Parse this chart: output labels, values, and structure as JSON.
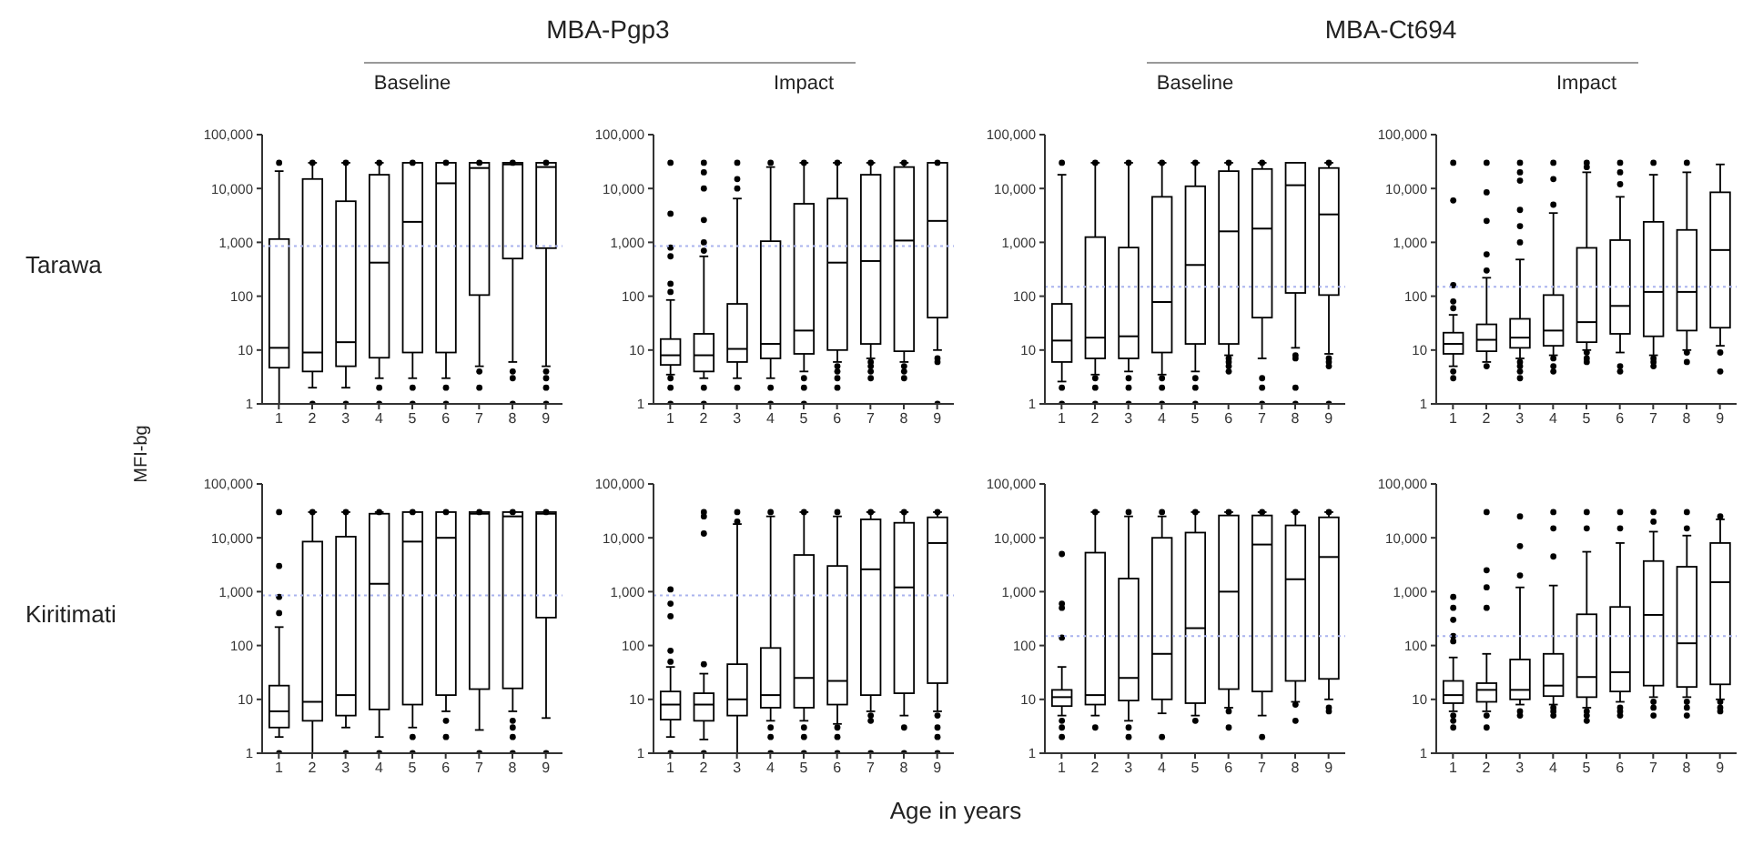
{
  "chart_data": [
    {
      "type": "box",
      "title": "Baseline",
      "ylabel": "MFI-bg",
      "annotations": [
        "MBA-Pgp3",
        "Tarawa"
      ],
      "categories": [
        "1",
        "2",
        "3",
        "4",
        "5",
        "6",
        "7",
        "8",
        "9"
      ],
      "color": "#000000",
      "log": true,
      "ylim": [
        1,
        100000
      ],
      "yticks": [
        1,
        10,
        100,
        {
          "value": 1000,
          "label": "1,000"
        },
        {
          "value": 10000,
          "label": "10,000"
        },
        {
          "value": 100000,
          "label": "100,000"
        }
      ],
      "ref_lines": [
        {
          "axis": "y",
          "value": 850,
          "color": "#a9b3ee",
          "line_style": "dotted"
        }
      ],
      "boxes": [
        {
          "low": 1,
          "q1": 4.7,
          "median": 11,
          "q3": 1150,
          "high": 21000,
          "outliers": [
            30000
          ]
        },
        {
          "low": 2,
          "q1": 4,
          "median": 9,
          "q3": 15000,
          "high": 30000,
          "outliers": [
            1,
            30000
          ]
        },
        {
          "low": 2,
          "q1": 5,
          "median": 14,
          "q3": 5800,
          "high": 30000,
          "outliers": [
            1,
            30000
          ]
        },
        {
          "low": 3,
          "q1": 7.2,
          "median": 420,
          "q3": 18000,
          "high": 30000,
          "outliers": [
            2,
            1,
            30000
          ]
        },
        {
          "low": 3,
          "q1": 9,
          "median": 2400,
          "q3": 30000,
          "high": 30000,
          "outliers": [
            2,
            1,
            30000
          ]
        },
        {
          "low": 3,
          "q1": 9,
          "median": 12500,
          "q3": 30000,
          "high": 30000,
          "outliers": [
            2,
            1,
            30000
          ]
        },
        {
          "low": 5,
          "q1": 105,
          "median": 24000,
          "q3": 30000,
          "high": 30000,
          "outliers": [
            4,
            2,
            30000
          ]
        },
        {
          "low": 6,
          "q1": 500,
          "median": 28000,
          "q3": 30000,
          "high": 30000,
          "outliers": [
            4,
            3,
            1,
            30000
          ]
        },
        {
          "low": 5,
          "q1": 780,
          "median": 25000,
          "q3": 30000,
          "high": 30000,
          "outliers": [
            4,
            3,
            2,
            1,
            30000
          ]
        }
      ]
    },
    {
      "type": "box",
      "title": "Impact",
      "categories": [
        "1",
        "2",
        "3",
        "4",
        "5",
        "6",
        "7",
        "8",
        "9"
      ],
      "color": "#000000",
      "log": true,
      "ylim": [
        1,
        100000
      ],
      "yticks": [
        1,
        10,
        100,
        {
          "value": 1000,
          "label": "1,000"
        },
        {
          "value": 10000,
          "label": "10,000"
        },
        {
          "value": 100000,
          "label": "100,000"
        }
      ],
      "ref_lines": [
        {
          "axis": "y",
          "value": 850,
          "color": "#a9b3ee",
          "line_style": "dotted"
        }
      ],
      "boxes": [
        {
          "low": 3.5,
          "q1": 5.3,
          "median": 8,
          "q3": 16,
          "high": 85,
          "outliers": [
            3,
            2,
            1,
            120,
            170,
            550,
            800,
            3400,
            30000
          ]
        },
        {
          "low": 3,
          "q1": 4,
          "median": 8,
          "q3": 20,
          "high": 550,
          "outliers": [
            2,
            1,
            700,
            1000,
            2600,
            10000,
            20000,
            30000
          ]
        },
        {
          "low": 3,
          "q1": 6,
          "median": 10.5,
          "q3": 72,
          "high": 6500,
          "outliers": [
            2,
            10000,
            15000,
            30000
          ]
        },
        {
          "low": 3,
          "q1": 7,
          "median": 13,
          "q3": 1050,
          "high": 25000,
          "outliers": [
            2,
            1,
            30000
          ]
        },
        {
          "low": 4,
          "q1": 8.5,
          "median": 23,
          "q3": 5200,
          "high": 30000,
          "outliers": [
            3,
            2,
            1,
            30000
          ]
        },
        {
          "low": 6,
          "q1": 10,
          "median": 420,
          "q3": 6500,
          "high": 30000,
          "outliers": [
            5,
            4,
            3,
            2,
            30000
          ]
        },
        {
          "low": 7,
          "q1": 13,
          "median": 450,
          "q3": 18000,
          "high": 30000,
          "outliers": [
            6,
            5,
            4,
            3,
            30000
          ]
        },
        {
          "low": 6,
          "q1": 9.5,
          "median": 1080,
          "q3": 25000,
          "high": 30000,
          "outliers": [
            5,
            4,
            3,
            30000
          ]
        },
        {
          "low": 10,
          "q1": 40,
          "median": 2500,
          "q3": 30000,
          "high": 30000,
          "outliers": [
            7,
            6,
            1,
            30000
          ]
        }
      ]
    },
    {
      "type": "box",
      "title": "Baseline",
      "annotations": [
        "MBA-Ct694"
      ],
      "categories": [
        "1",
        "2",
        "3",
        "4",
        "5",
        "6",
        "7",
        "8",
        "9"
      ],
      "color": "#000000",
      "log": true,
      "ylim": [
        1,
        100000
      ],
      "yticks": [
        1,
        10,
        100,
        {
          "value": 1000,
          "label": "1,000"
        },
        {
          "value": 10000,
          "label": "10,000"
        },
        {
          "value": 100000,
          "label": "100,000"
        }
      ],
      "ref_lines": [
        {
          "axis": "y",
          "value": 150,
          "color": "#a9b3ee",
          "line_style": "dotted"
        }
      ],
      "boxes": [
        {
          "low": 2.6,
          "q1": 6,
          "median": 15,
          "q3": 72,
          "high": 18000,
          "outliers": [
            2,
            1,
            30000
          ]
        },
        {
          "low": 3.5,
          "q1": 7,
          "median": 17,
          "q3": 1250,
          "high": 30000,
          "outliers": [
            3,
            2,
            1,
            30000
          ]
        },
        {
          "low": 4,
          "q1": 7,
          "median": 18,
          "q3": 800,
          "high": 30000,
          "outliers": [
            3,
            2,
            1,
            30000
          ]
        },
        {
          "low": 3.5,
          "q1": 9,
          "median": 78,
          "q3": 7000,
          "high": 30000,
          "outliers": [
            3,
            2,
            1,
            30000
          ]
        },
        {
          "low": 4,
          "q1": 13,
          "median": 380,
          "q3": 11000,
          "high": 30000,
          "outliers": [
            3,
            2,
            1,
            30000
          ]
        },
        {
          "low": 8,
          "q1": 13,
          "median": 1600,
          "q3": 21000,
          "high": 30000,
          "outliers": [
            7,
            6,
            5,
            4,
            30000
          ]
        },
        {
          "low": 7,
          "q1": 40,
          "median": 1800,
          "q3": 23000,
          "high": 30000,
          "outliers": [
            3,
            2,
            1,
            30000
          ]
        },
        {
          "low": 11,
          "q1": 115,
          "median": 11500,
          "q3": 30000,
          "high": 30000,
          "outliers": [
            8,
            7,
            2,
            1
          ]
        },
        {
          "low": 8.5,
          "q1": 105,
          "median": 3300,
          "q3": 24000,
          "high": 30000,
          "outliers": [
            7,
            6,
            5,
            1,
            30000
          ]
        }
      ]
    },
    {
      "type": "box",
      "title": "Impact",
      "categories": [
        "1",
        "2",
        "3",
        "4",
        "5",
        "6",
        "7",
        "8",
        "9"
      ],
      "color": "#000000",
      "log": true,
      "ylim": [
        1,
        100000
      ],
      "yticks": [
        1,
        10,
        100,
        {
          "value": 1000,
          "label": "1,000"
        },
        {
          "value": 10000,
          "label": "10,000"
        },
        {
          "value": 100000,
          "label": "100,000"
        }
      ],
      "ref_lines": [
        {
          "axis": "y",
          "value": 150,
          "color": "#a9b3ee",
          "line_style": "dotted"
        }
      ],
      "boxes": [
        {
          "low": 5,
          "q1": 8.5,
          "median": 13,
          "q3": 21,
          "high": 45,
          "outliers": [
            4,
            3,
            60,
            80,
            160,
            6000,
            30000
          ]
        },
        {
          "low": 6,
          "q1": 9.5,
          "median": 15.5,
          "q3": 30,
          "high": 220,
          "outliers": [
            5,
            300,
            600,
            2500,
            8500,
            30000
          ]
        },
        {
          "low": 7,
          "q1": 11,
          "median": 17,
          "q3": 38,
          "high": 480,
          "outliers": [
            6,
            5,
            4,
            3,
            1000,
            2000,
            4000,
            14000,
            20000,
            30000
          ]
        },
        {
          "low": 8,
          "q1": 12,
          "median": 23,
          "q3": 105,
          "high": 3500,
          "outliers": [
            7,
            5,
            4,
            5000,
            15000,
            30000
          ]
        },
        {
          "low": 10,
          "q1": 14,
          "median": 33,
          "q3": 790,
          "high": 20000,
          "outliers": [
            9,
            7,
            6,
            25000,
            30000
          ]
        },
        {
          "low": 9,
          "q1": 20,
          "median": 66,
          "q3": 1100,
          "high": 7000,
          "outliers": [
            5,
            4,
            12000,
            20000,
            30000
          ]
        },
        {
          "low": 8,
          "q1": 18,
          "median": 120,
          "q3": 2400,
          "high": 18000,
          "outliers": [
            7,
            6,
            5,
            30000
          ]
        },
        {
          "low": 10,
          "q1": 23,
          "median": 120,
          "q3": 1700,
          "high": 20000,
          "outliers": [
            9,
            6,
            30000
          ]
        },
        {
          "low": 12,
          "q1": 26,
          "median": 720,
          "q3": 8500,
          "high": 28000,
          "outliers": [
            9,
            4
          ]
        }
      ]
    },
    {
      "type": "box",
      "annotations": [
        "Kiritimati"
      ],
      "categories": [
        "1",
        "2",
        "3",
        "4",
        "5",
        "6",
        "7",
        "8",
        "9"
      ],
      "color": "#000000",
      "log": true,
      "ylim": [
        1,
        100000
      ],
      "yticks": [
        1,
        10,
        100,
        {
          "value": 1000,
          "label": "1,000"
        },
        {
          "value": 10000,
          "label": "10,000"
        },
        {
          "value": 100000,
          "label": "100,000"
        }
      ],
      "ref_lines": [
        {
          "axis": "y",
          "value": 850,
          "color": "#a9b3ee",
          "line_style": "dotted"
        }
      ],
      "boxes": [
        {
          "low": 2,
          "q1": 3,
          "median": 6,
          "q3": 18,
          "high": 220,
          "outliers": [
            1,
            400,
            800,
            3000,
            30000
          ]
        },
        {
          "low": 1,
          "q1": 4,
          "median": 9,
          "q3": 8500,
          "high": 30000,
          "outliers": [
            30000
          ]
        },
        {
          "low": 3,
          "q1": 5,
          "median": 12,
          "q3": 10500,
          "high": 30000,
          "outliers": [
            1,
            30000
          ]
        },
        {
          "low": 2,
          "q1": 6.5,
          "median": 1400,
          "q3": 28000,
          "high": 30000,
          "outliers": [
            1,
            30000
          ]
        },
        {
          "low": 3,
          "q1": 8,
          "median": 8500,
          "q3": 30000,
          "high": 30000,
          "outliers": [
            2,
            1,
            30000
          ]
        },
        {
          "low": 6,
          "q1": 12,
          "median": 10000,
          "q3": 30000,
          "high": 30000,
          "outliers": [
            4,
            2,
            30000
          ]
        },
        {
          "low": 2.7,
          "q1": 15.5,
          "median": 28000,
          "q3": 30000,
          "high": 30000,
          "outliers": [
            1,
            30000
          ]
        },
        {
          "low": 6,
          "q1": 16,
          "median": 25000,
          "q3": 30000,
          "high": 30000,
          "outliers": [
            4,
            3,
            2,
            1,
            30000
          ]
        },
        {
          "low": 4.5,
          "q1": 330,
          "median": 28000,
          "q3": 30000,
          "high": 30000,
          "outliers": [
            1,
            30000
          ]
        }
      ]
    },
    {
      "type": "box",
      "xlabel": "Age in years",
      "categories": [
        "1",
        "2",
        "3",
        "4",
        "5",
        "6",
        "7",
        "8",
        "9"
      ],
      "color": "#000000",
      "log": true,
      "ylim": [
        1,
        100000
      ],
      "yticks": [
        1,
        10,
        100,
        {
          "value": 1000,
          "label": "1,000"
        },
        {
          "value": 10000,
          "label": "10,000"
        },
        {
          "value": 100000,
          "label": "100,000"
        }
      ],
      "ref_lines": [
        {
          "axis": "y",
          "value": 850,
          "color": "#a9b3ee",
          "line_style": "dotted"
        }
      ],
      "boxes": [
        {
          "low": 2,
          "q1": 4.2,
          "median": 8,
          "q3": 14,
          "high": 40,
          "outliers": [
            1,
            50,
            80,
            350,
            600,
            1100
          ]
        },
        {
          "low": 1.8,
          "q1": 4,
          "median": 8,
          "q3": 13,
          "high": 30,
          "outliers": [
            1,
            45,
            12000,
            25000,
            30000
          ]
        },
        {
          "low": 1,
          "q1": 5,
          "median": 10,
          "q3": 45,
          "high": 18000,
          "outliers": [
            20000,
            30000
          ]
        },
        {
          "low": 4,
          "q1": 7,
          "median": 12,
          "q3": 90,
          "high": 25000,
          "outliers": [
            3,
            2,
            1,
            30000
          ]
        },
        {
          "low": 4,
          "q1": 7,
          "median": 25,
          "q3": 4800,
          "high": 30000,
          "outliers": [
            3,
            2,
            1,
            30000
          ]
        },
        {
          "low": 3.5,
          "q1": 8,
          "median": 22,
          "q3": 3000,
          "high": 25000,
          "outliers": [
            3,
            2,
            1,
            30000
          ]
        },
        {
          "low": 6,
          "q1": 12,
          "median": 2600,
          "q3": 22000,
          "high": 30000,
          "outliers": [
            5,
            4,
            1,
            30000
          ]
        },
        {
          "low": 5,
          "q1": 13,
          "median": 1200,
          "q3": 19000,
          "high": 30000,
          "outliers": [
            3,
            1,
            30000
          ]
        },
        {
          "low": 6,
          "q1": 20,
          "median": 8000,
          "q3": 24000,
          "high": 30000,
          "outliers": [
            5,
            3,
            2,
            1,
            30000
          ]
        }
      ]
    },
    {
      "type": "box",
      "categories": [
        "1",
        "2",
        "3",
        "4",
        "5",
        "6",
        "7",
        "8",
        "9"
      ],
      "color": "#000000",
      "log": true,
      "ylim": [
        1,
        100000
      ],
      "yticks": [
        1,
        10,
        100,
        {
          "value": 1000,
          "label": "1,000"
        },
        {
          "value": 10000,
          "label": "10,000"
        },
        {
          "value": 100000,
          "label": "100,000"
        }
      ],
      "ref_lines": [
        {
          "axis": "y",
          "value": 150,
          "color": "#a9b3ee",
          "line_style": "dotted"
        }
      ],
      "boxes": [
        {
          "low": 5,
          "q1": 7.5,
          "median": 11,
          "q3": 15,
          "high": 40,
          "outliers": [
            4,
            3,
            2,
            140,
            500,
            600,
            5000
          ]
        },
        {
          "low": 5,
          "q1": 8,
          "median": 12,
          "q3": 5300,
          "high": 30000,
          "outliers": [
            3,
            30000
          ]
        },
        {
          "low": 4,
          "q1": 9.5,
          "median": 25,
          "q3": 1750,
          "high": 25000,
          "outliers": [
            3,
            2,
            30000
          ]
        },
        {
          "low": 5.5,
          "q1": 10,
          "median": 70,
          "q3": 10000,
          "high": 25000,
          "outliers": [
            2,
            30000
          ]
        },
        {
          "low": 5,
          "q1": 8.5,
          "median": 210,
          "q3": 12500,
          "high": 30000,
          "outliers": [
            4,
            30000
          ]
        },
        {
          "low": 7,
          "q1": 15.5,
          "median": 1000,
          "q3": 26000,
          "high": 30000,
          "outliers": [
            6,
            3,
            30000
          ]
        },
        {
          "low": 5,
          "q1": 14,
          "median": 7500,
          "q3": 26000,
          "high": 30000,
          "outliers": [
            2,
            30000
          ]
        },
        {
          "low": 9,
          "q1": 22,
          "median": 1700,
          "q3": 17000,
          "high": 30000,
          "outliers": [
            8,
            4,
            30000
          ]
        },
        {
          "low": 10,
          "q1": 24,
          "median": 4400,
          "q3": 24000,
          "high": 30000,
          "outliers": [
            7,
            6,
            30000
          ]
        }
      ]
    },
    {
      "type": "box",
      "categories": [
        "1",
        "2",
        "3",
        "4",
        "5",
        "6",
        "7",
        "8",
        "9"
      ],
      "color": "#000000",
      "log": true,
      "ylim": [
        1,
        100000
      ],
      "yticks": [
        1,
        10,
        100,
        {
          "value": 1000,
          "label": "1,000"
        },
        {
          "value": 10000,
          "label": "10,000"
        },
        {
          "value": 100000,
          "label": "100,000"
        }
      ],
      "ref_lines": [
        {
          "axis": "y",
          "value": 150,
          "color": "#a9b3ee",
          "line_style": "dotted"
        }
      ],
      "boxes": [
        {
          "low": 6,
          "q1": 8.5,
          "median": 12,
          "q3": 22,
          "high": 60,
          "outliers": [
            5,
            4,
            3,
            120,
            150,
            300,
            500,
            800
          ]
        },
        {
          "low": 6,
          "q1": 9,
          "median": 15,
          "q3": 20,
          "high": 70,
          "outliers": [
            5,
            3,
            500,
            1200,
            2500,
            30000
          ]
        },
        {
          "low": 8,
          "q1": 10,
          "median": 15,
          "q3": 55,
          "high": 1200,
          "outliers": [
            6,
            5,
            2000,
            7000,
            25000
          ]
        },
        {
          "low": 8,
          "q1": 11.5,
          "median": 18,
          "q3": 70,
          "high": 1300,
          "outliers": [
            7,
            6,
            5,
            4500,
            15000,
            30000
          ]
        },
        {
          "low": 7,
          "q1": 11,
          "median": 26,
          "q3": 380,
          "high": 5500,
          "outliers": [
            6,
            5,
            4,
            15000,
            30000
          ]
        },
        {
          "low": 9,
          "q1": 14,
          "median": 32,
          "q3": 520,
          "high": 8000,
          "outliers": [
            7,
            6,
            5,
            15000,
            30000
          ]
        },
        {
          "low": 11,
          "q1": 18,
          "median": 370,
          "q3": 3700,
          "high": 13000,
          "outliers": [
            9,
            7,
            5,
            20000,
            30000
          ]
        },
        {
          "low": 11,
          "q1": 17,
          "median": 110,
          "q3": 2900,
          "high": 11000,
          "outliers": [
            9,
            7,
            5,
            15000,
            30000
          ]
        },
        {
          "low": 10,
          "q1": 19,
          "median": 1500,
          "q3": 8000,
          "high": 22000,
          "outliers": [
            9,
            7,
            6,
            25000
          ]
        }
      ]
    }
  ]
}
